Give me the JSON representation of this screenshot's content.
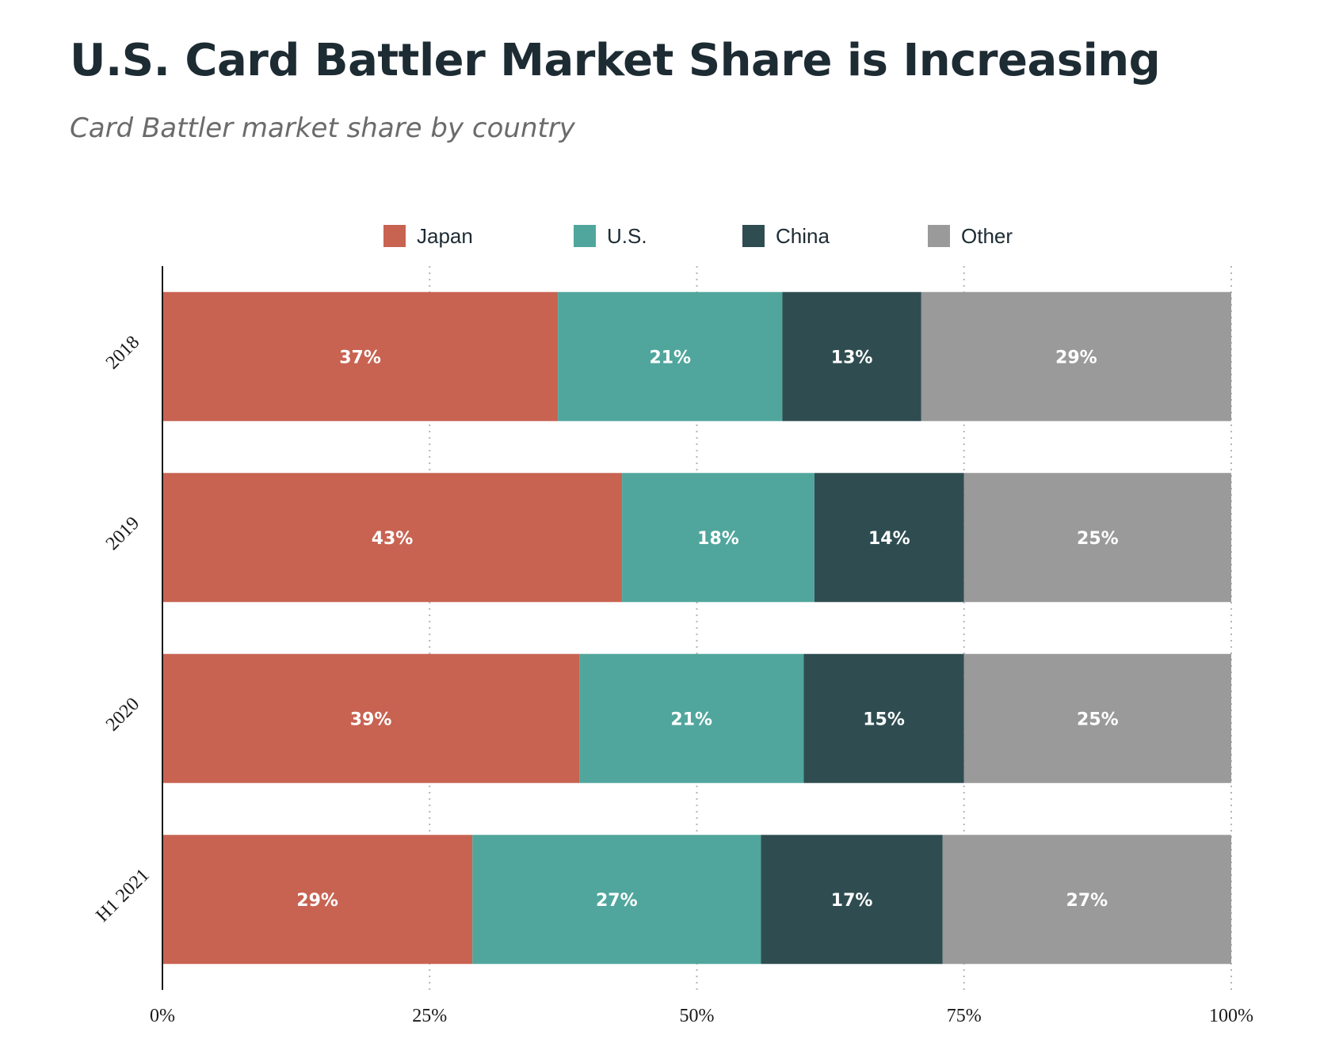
{
  "chart_data": {
    "type": "bar",
    "orientation": "horizontal",
    "stacked": true,
    "title": "U.S. Card Battler Market Share is Increasing",
    "subtitle": "Card Battler market share by country",
    "categories": [
      "2018",
      "2019",
      "2020",
      "H1 2021"
    ],
    "series": [
      {
        "name": "Japan",
        "color": "#c86352",
        "values": [
          37,
          43,
          39,
          29
        ]
      },
      {
        "name": "U.S.",
        "color": "#50a69c",
        "values": [
          21,
          18,
          21,
          27
        ]
      },
      {
        "name": "China",
        "color": "#2f4d51",
        "values": [
          13,
          14,
          15,
          17
        ]
      },
      {
        "name": "Other",
        "color": "#9a9a9a",
        "values": [
          29,
          25,
          25,
          27
        ]
      }
    ],
    "data_label_suffix": "%",
    "xlim": [
      0,
      100
    ],
    "xticks": [
      "0%",
      "25%",
      "50%",
      "75%",
      "100%"
    ],
    "xlabel": "",
    "ylabel": "",
    "grid": "vertical dotted",
    "legend_position": "top"
  }
}
